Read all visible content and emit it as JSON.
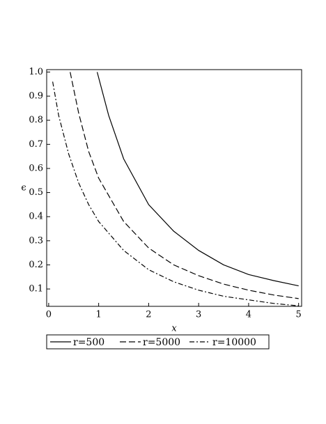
{
  "chart_data": {
    "type": "line",
    "xlabel": "x",
    "ylabel": "ϵ",
    "xlim": [
      -0.04,
      5.06
    ],
    "ylim": [
      0.028,
      1.01
    ],
    "xticks": [
      0,
      1,
      2,
      3,
      4,
      5
    ],
    "yticks": [
      0.1,
      0.2,
      0.3,
      0.4,
      0.5,
      0.6,
      0.7,
      0.8,
      0.9,
      {
        "value": 1,
        "label": "1.0"
      }
    ],
    "series": [
      {
        "name": "r=500",
        "color": "#000000",
        "dash": "solid",
        "x": [
          0.97,
          1.2,
          1.5,
          2,
          2.5,
          3,
          3.5,
          4,
          4.5,
          5
        ],
        "values": [
          1.0,
          0.82,
          0.64,
          0.45,
          0.34,
          0.26,
          0.2,
          0.16,
          0.135,
          0.113
        ]
      },
      {
        "name": "r=5000",
        "color": "#000000",
        "dash": "dashed",
        "x": [
          0.43,
          0.6,
          0.8,
          1,
          1.5,
          2,
          2.5,
          3,
          3.5,
          4,
          4.5,
          5
        ],
        "values": [
          1.0,
          0.83,
          0.67,
          0.56,
          0.38,
          0.27,
          0.2,
          0.155,
          0.12,
          0.095,
          0.075,
          0.06
        ]
      },
      {
        "name": "r=10000",
        "color": "#000000",
        "dash": "dashdot",
        "x": [
          0.08,
          0.2,
          0.4,
          0.6,
          0.8,
          1,
          1.5,
          2,
          2.5,
          3,
          3.5,
          4,
          4.5,
          5
        ],
        "values": [
          0.96,
          0.82,
          0.66,
          0.54,
          0.45,
          0.38,
          0.26,
          0.18,
          0.13,
          0.095,
          0.07,
          0.055,
          0.04,
          0.03
        ]
      }
    ]
  }
}
